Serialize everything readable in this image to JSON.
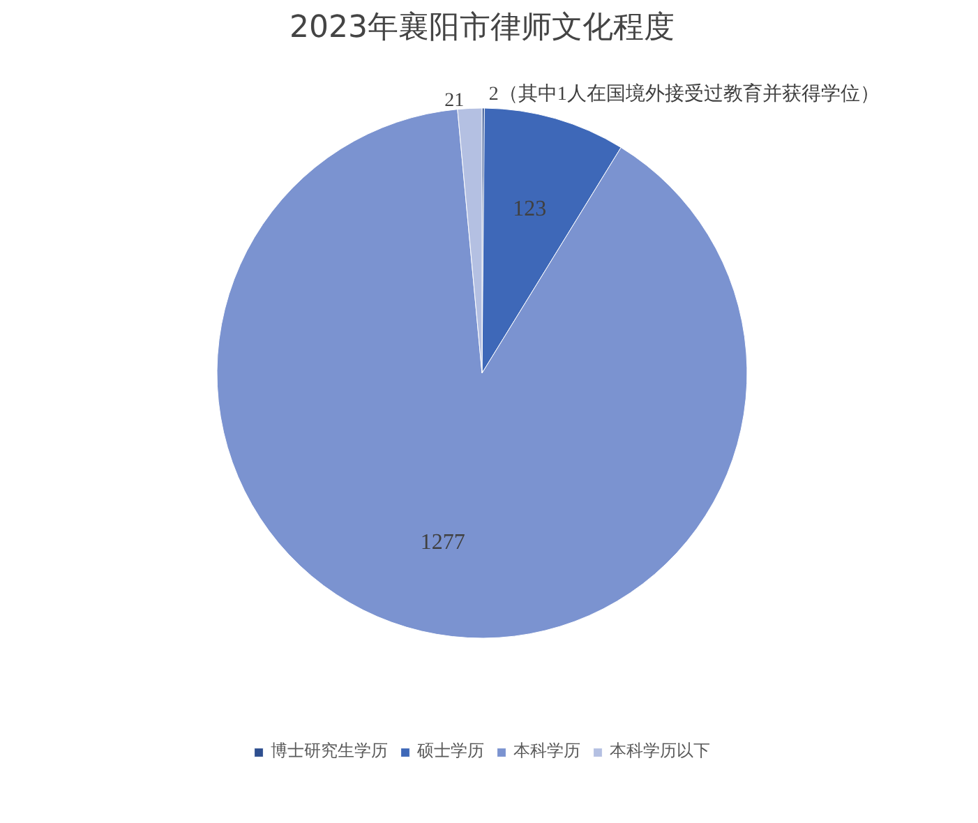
{
  "chart_data": {
    "type": "pie",
    "title": "2023年襄阳市律师文化程度",
    "categories": [
      "博士研究生学历",
      "硕士学历",
      "本科学历",
      "本科学历以下"
    ],
    "values": [
      2,
      123,
      1277,
      21
    ],
    "colors": [
      "#2e4f8f",
      "#3e68b8",
      "#7b93d0",
      "#b4c0e2"
    ],
    "value_labels": [
      "2（其中1人在国境外接受过教育并获得学位）",
      "123",
      "1277",
      "21"
    ],
    "legend": "bottom"
  }
}
